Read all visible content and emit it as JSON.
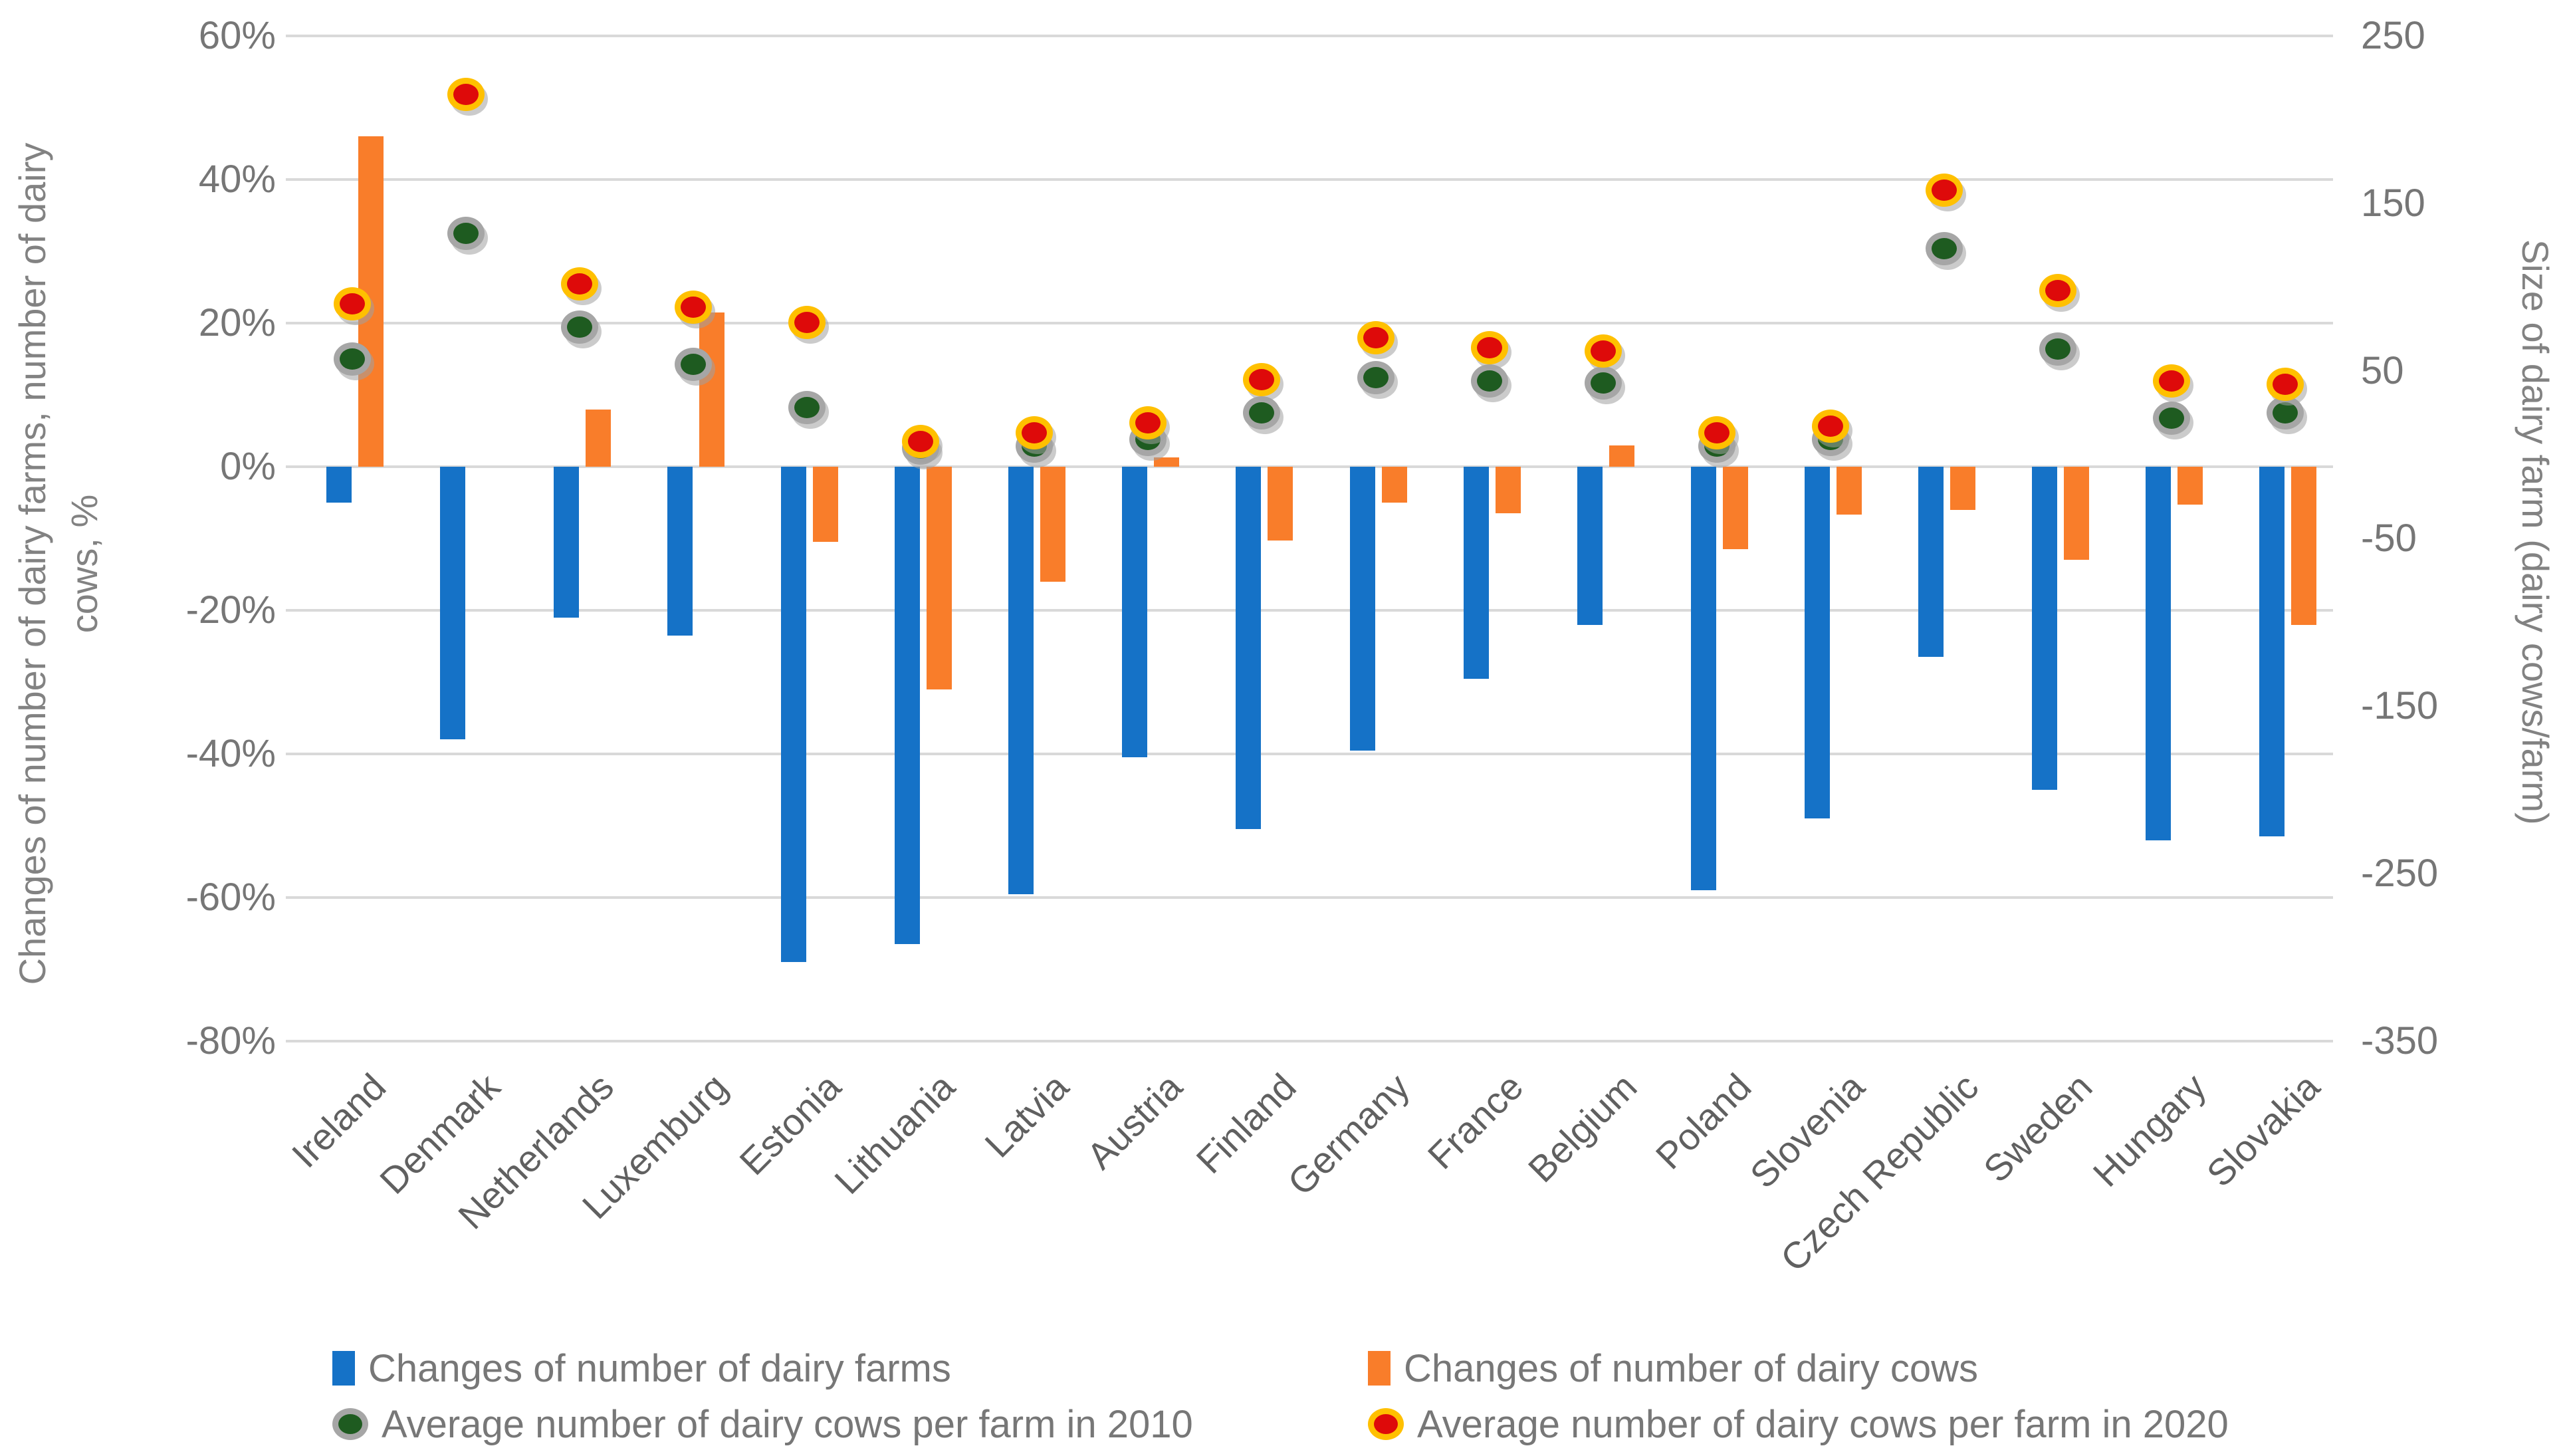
{
  "chart_data": {
    "type": "combo-bar-scatter",
    "categories": [
      "Ireland",
      "Denmark",
      "Netherlands",
      "Luxemburg",
      "Estonia",
      "Lithuania",
      "Latvia",
      "Austria",
      "Finland",
      "Germany",
      "France",
      "Belgium",
      "Poland",
      "Slovenia",
      "Czech Republic",
      "Sweden",
      "Hungary",
      "Slovakia"
    ],
    "series": [
      {
        "name": "Changes of number of dairy farms",
        "type": "bar",
        "axis": "left",
        "unit": "%",
        "color": "#1572C7",
        "values": [
          -5,
          -38,
          -21,
          -23.5,
          -69,
          -66.5,
          -59.5,
          -40.5,
          -50.5,
          -39.5,
          -29.5,
          -22,
          -59,
          -49,
          -26.5,
          -45,
          -52,
          -51.5
        ]
      },
      {
        "name": "Changes of number of dairy cows",
        "type": "bar",
        "axis": "left",
        "unit": "%",
        "color": "#F97D2A",
        "values": [
          46,
          0,
          8,
          21.5,
          -10.5,
          -31,
          -16,
          1.3,
          -10.3,
          -5,
          -6.5,
          3,
          -11.5,
          -6.7,
          -6,
          -13,
          -5.3,
          -22
        ]
      },
      {
        "name": "Average number of dairy cows per farm in 2010",
        "type": "scatter",
        "axis": "right",
        "unit": "dairy cows/farm",
        "color": "#1E5B20",
        "ring_color": "#A6A6A6",
        "values": [
          57,
          132,
          76,
          54,
          28,
          4,
          5,
          9,
          25,
          46,
          44,
          43,
          5,
          9,
          123,
          63,
          22,
          25
        ]
      },
      {
        "name": "Average number of dairy cows per farm in 2020",
        "type": "scatter",
        "axis": "right",
        "unit": "dairy cows/farm",
        "color": "#DE0A0A",
        "ring_color": "#FFC000",
        "values": [
          90,
          215,
          102,
          88,
          79,
          8,
          13,
          19,
          45,
          70,
          64,
          62,
          13,
          17,
          158,
          98,
          44,
          42
        ]
      }
    ],
    "axis_left": {
      "title_line1": "Changes of number of dairy farms, number of dairy",
      "title_line2": "cows, %",
      "tick_labels": [
        "60%",
        "40%",
        "20%",
        "0%",
        "-20%",
        "-40%",
        "-60%",
        "-80%"
      ],
      "tick_values": [
        60,
        40,
        20,
        0,
        -20,
        -40,
        -60,
        -80
      ],
      "range": [
        -80,
        60
      ]
    },
    "axis_right": {
      "title": "Size of dairy farm (dairy cows/farm)",
      "tick_labels": [
        "250",
        "150",
        "50",
        "-50",
        "-150",
        "-250",
        "-350"
      ],
      "tick_values": [
        250,
        150,
        50,
        -50,
        -150,
        -250,
        -350
      ],
      "range": [
        -350,
        250
      ]
    },
    "grid": true,
    "legend_position": "bottom",
    "legend": [
      "Changes of number of dairy farms",
      "Changes of number of dairy cows",
      "Average number of dairy cows per farm in 2010",
      "Average number of dairy cows per farm in 2020"
    ]
  }
}
